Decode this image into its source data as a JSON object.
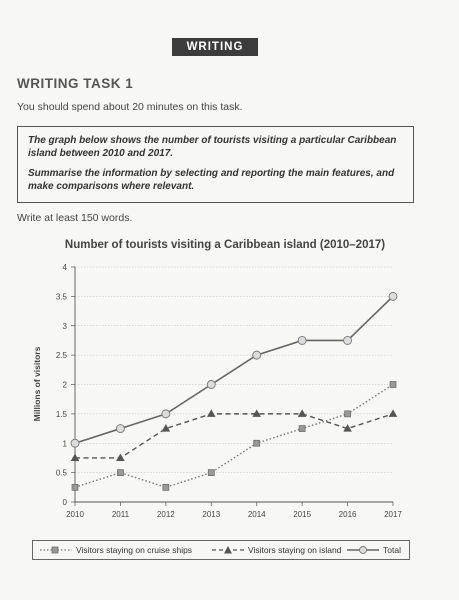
{
  "header": {
    "badge": "WRITING"
  },
  "task": {
    "title": "WRITING TASK 1",
    "instruction": "You should spend about 20 minutes on this task.",
    "prompt_1": "The graph below shows the number of tourists visiting a particular Caribbean island between 2010 and 2017.",
    "prompt_2": "Summarise the information by selecting and reporting the main features, and make comparisons where relevant.",
    "word_limit": "Write at least 150 words."
  },
  "chart_data": {
    "type": "line",
    "title": "Number of tourists visiting a Caribbean island (2010–2017)",
    "ylabel": "Millions of visitors",
    "xlabel": "",
    "x": [
      "2010",
      "2011",
      "2012",
      "2013",
      "2014",
      "2015",
      "2016",
      "2017"
    ],
    "yticks": [
      "0",
      "0.5",
      "1",
      "1.5",
      "2",
      "2.5",
      "3",
      "3.5",
      "4"
    ],
    "ylim": [
      0,
      4
    ],
    "grid": true,
    "legend_position": "bottom",
    "series": [
      {
        "name": "Visitors staying on cruise ships",
        "values": [
          0.25,
          0.5,
          0.25,
          0.5,
          1.0,
          1.25,
          1.5,
          2.0
        ],
        "style": "dotted",
        "marker": "square",
        "color": "#777777"
      },
      {
        "name": "Visitors staying on island",
        "values": [
          0.75,
          0.75,
          1.25,
          1.5,
          1.5,
          1.5,
          1.25,
          1.5
        ],
        "style": "dashed",
        "marker": "triangle",
        "color": "#555555"
      },
      {
        "name": "Total",
        "values": [
          1.0,
          1.25,
          1.5,
          2.0,
          2.5,
          2.75,
          2.75,
          3.5
        ],
        "style": "solid",
        "marker": "circle",
        "color": "#666666"
      }
    ]
  }
}
